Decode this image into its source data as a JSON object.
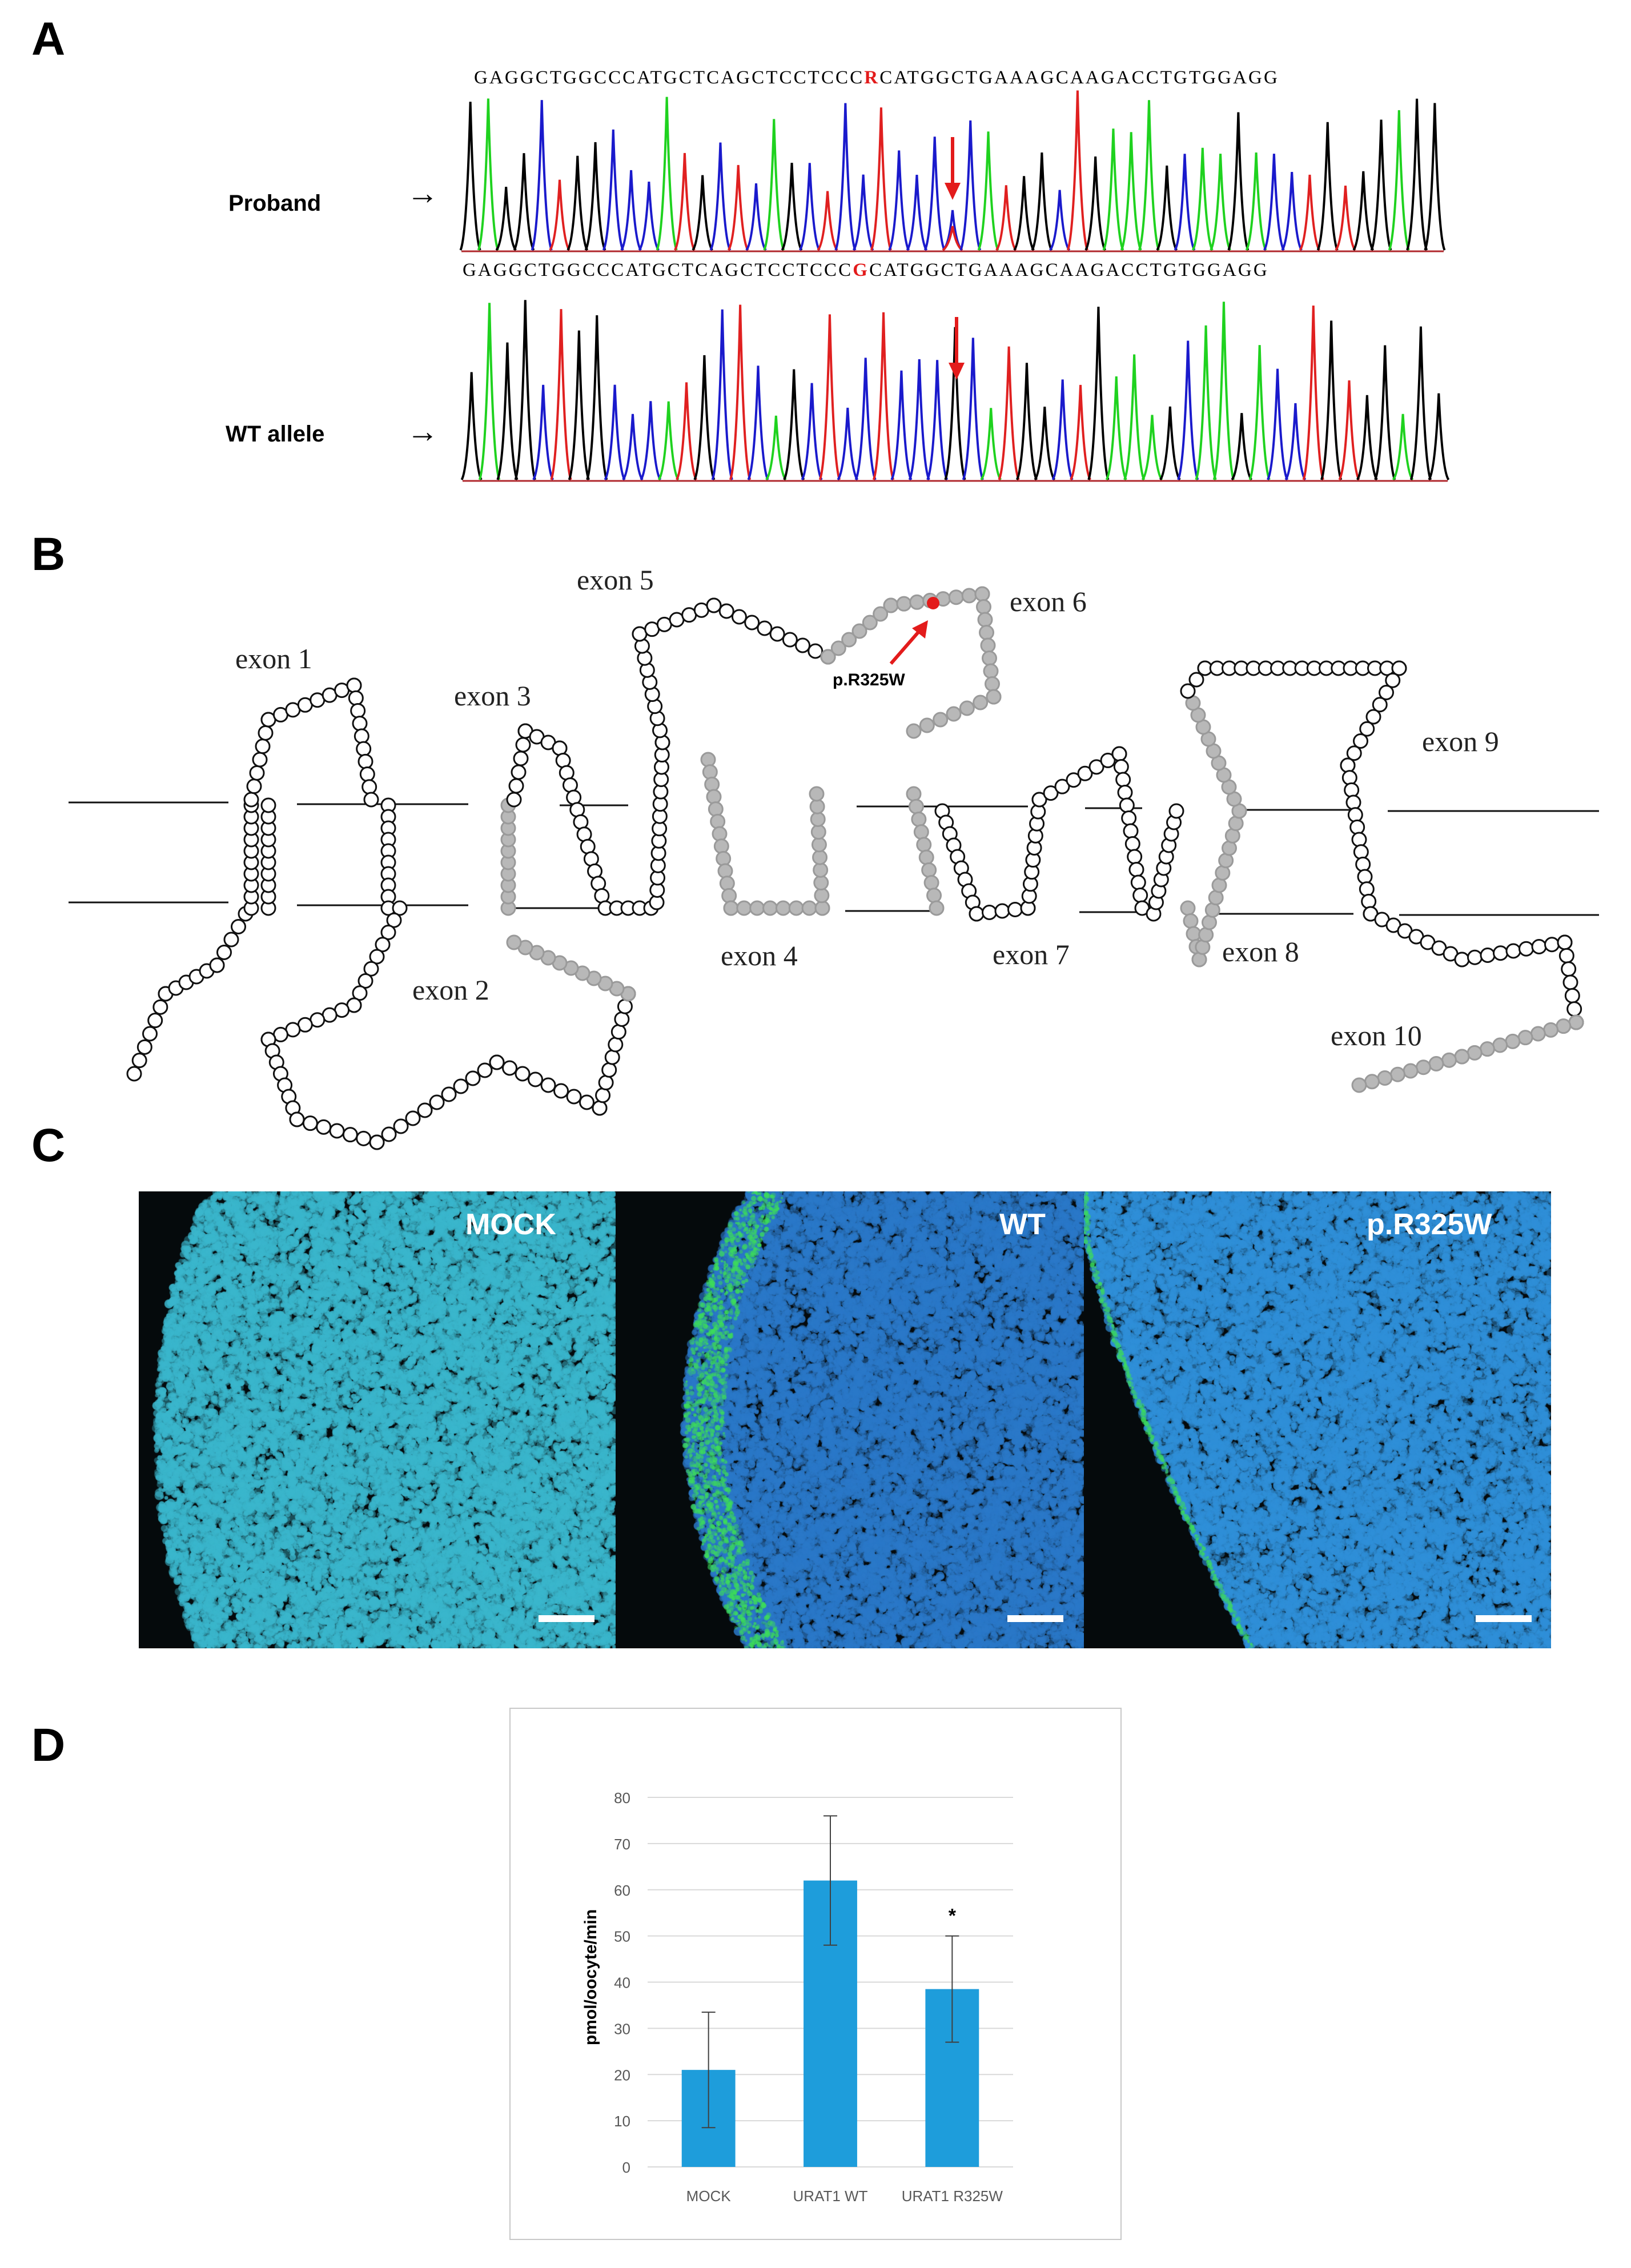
{
  "panel_a": {
    "letter": "A",
    "proband_seq_before": "GAGGCTGGCCCATGCTCAGCTCCTCCC",
    "proband_seq_mut": "R",
    "proband_seq_after": "CATGGCTGAAAGCAAGACCTGTGGAGG",
    "wt_seq_before": "GAGGCTGGCCCATGCTCAGCTCCTCCC",
    "wt_seq_mut": "G",
    "wt_seq_after": "CATGGCTGAAAGCAAGACCTGTGGAGG",
    "proband_label": "Proband",
    "wt_label": "WT allele",
    "arrow_glyph": "→",
    "trace_colors": {
      "A": "#1fd21f",
      "C": "#1a1acc",
      "G": "#000000",
      "T": "#e02020"
    },
    "highlight_color": "#e31b1b"
  },
  "panel_b": {
    "letter": "B",
    "exons": [
      "exon 1",
      "exon 2",
      "exon 3",
      "exon 4",
      "exon 5",
      "exon 6",
      "exon 7",
      "exon 8",
      "exon 9",
      "exon 10"
    ],
    "mutation_label": "p.R325W",
    "mutation_color": "#e31b1b"
  },
  "panel_c": {
    "letter": "C",
    "images": [
      {
        "label": "MOCK",
        "dapi_color": "#3ab6cc"
      },
      {
        "label": "WT",
        "dapi_color": "#2a78c8"
      },
      {
        "label": "p.R325W",
        "dapi_color": "#2f8fd8"
      }
    ]
  },
  "panel_d": {
    "letter": "D",
    "bar_color": "#1e9ddb",
    "chart_data": {
      "type": "bar",
      "categories": [
        "MOCK",
        "URAT1 WT",
        "URAT1 R325W"
      ],
      "values": [
        21,
        62,
        38.5
      ],
      "error": [
        12.5,
        14,
        11.5
      ],
      "annotations": [
        "",
        "",
        "*"
      ],
      "ylabel": "pmol/oocyte/min",
      "ylim": [
        0,
        80
      ],
      "yticks": [
        "0",
        "10",
        "20",
        "30",
        "40",
        "50",
        "60",
        "70",
        "80"
      ],
      "grid": true
    }
  }
}
